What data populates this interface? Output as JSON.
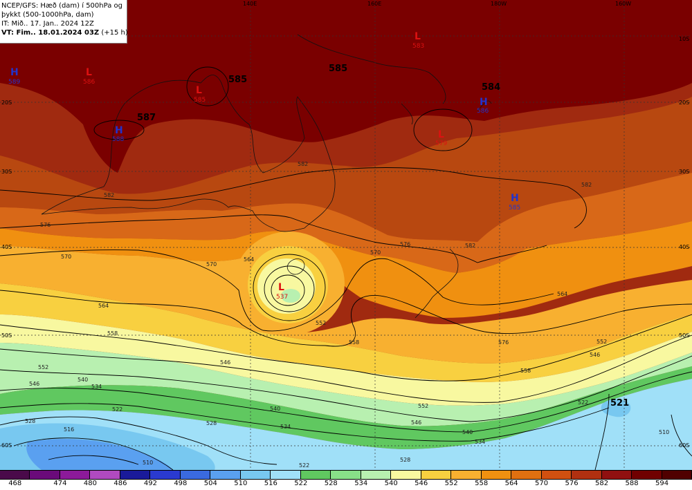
{
  "info": {
    "line1": "NCEP/GFS: Hæð (dam) í 500hPa og",
    "line2": "þykkt (500-1000hPa, dam)",
    "line3": "IT: Mið.. 17. Jan.. 2024 12Z",
    "line4_bold": "VT: Fim.. 18.01.2024 03Z",
    "line4_rest": " (+15 h)"
  },
  "axes": {
    "lon_top": [
      "140E",
      "160E",
      "180W",
      "160W"
    ],
    "lat_right": [
      "10S",
      "20S",
      "30S",
      "40S",
      "50S",
      "60S"
    ],
    "lat_left": [
      "20S",
      "30S",
      "40S",
      "50S",
      "60S"
    ]
  },
  "systems": [
    {
      "letter": "H",
      "value": "589",
      "color": "#2233cc"
    },
    {
      "letter": "L",
      "value": "586",
      "color": "#dd1111"
    },
    {
      "letter": "L",
      "value": "585",
      "color": "#dd1111"
    },
    {
      "letter": "H",
      "value": "588",
      "color": "#2233cc"
    },
    {
      "letter": "L",
      "value": "583",
      "color": "#dd1111"
    },
    {
      "letter": "H",
      "value": "586",
      "color": "#2233cc"
    },
    {
      "letter": "L",
      "value": "579",
      "color": "#dd1111"
    },
    {
      "letter": "H",
      "value": "585",
      "color": "#2233cc"
    },
    {
      "letter": "L",
      "value": "537",
      "color": "#dd1111"
    }
  ],
  "height_labels": [
    "585",
    "587",
    "585",
    "584",
    "521"
  ],
  "contour_labels": [
    "582",
    "582",
    "576",
    "570",
    "564",
    "558",
    "552",
    "546",
    "540",
    "534",
    "528",
    "522",
    "516",
    "510",
    "582",
    "576",
    "570",
    "564",
    "558",
    "552",
    "546",
    "540",
    "534",
    "528",
    "522",
    "510",
    "576",
    "570",
    "564",
    "558",
    "552",
    "546",
    "540",
    "534",
    "528",
    "522",
    "582",
    "546",
    "552"
  ],
  "legend": {
    "colors": [
      "#4a0a4a",
      "#6a0a7a",
      "#8c1a9a",
      "#b04ac0",
      "#1a1a9a",
      "#2a3ad0",
      "#3a6ae0",
      "#5aa0f0",
      "#78c8f0",
      "#a0e0f8",
      "#60c860",
      "#88e088",
      "#b8f0b0",
      "#f8f8a0",
      "#f8d040",
      "#f8b030",
      "#f09010",
      "#e07010",
      "#d05010",
      "#b03010",
      "#901010",
      "#700000",
      "#500000"
    ],
    "ticks": [
      "468",
      "474",
      "480",
      "486",
      "492",
      "498",
      "504",
      "510",
      "516",
      "522",
      "528",
      "534",
      "540",
      "546",
      "552",
      "558",
      "564",
      "570",
      "576",
      "582",
      "588",
      "594"
    ]
  }
}
